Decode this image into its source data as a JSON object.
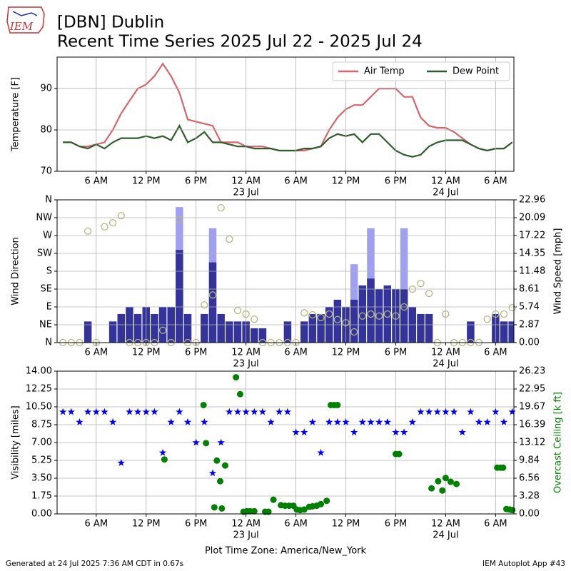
{
  "header": {
    "logo": "IEM",
    "title": "[DBN] Dublin",
    "subtitle": "Recent Time Series 2025 Jul 22 - 2025 Jul 24"
  },
  "footer": {
    "left": "Generated at 24 Jul 2025 7:36 AM CDT in 0.67s",
    "right": "IEM Autoplot App #43"
  },
  "chart_data": [
    {
      "type": "line",
      "ylabel": "Temperature [F]",
      "legend": "upper right",
      "grid": true,
      "xlim": [
        1.3,
        56.2
      ],
      "xticks": [
        {
          "value": 6,
          "label": "6 AM"
        },
        {
          "value": 12,
          "label": "12 PM"
        },
        {
          "value": 18,
          "label": "6 PM"
        },
        {
          "value": 24,
          "label": "12 AM",
          "sublabel": "23 Jul"
        },
        {
          "value": 30,
          "label": "6 AM"
        },
        {
          "value": 36,
          "label": "12 PM"
        },
        {
          "value": 42,
          "label": "6 PM"
        },
        {
          "value": 48,
          "label": "12 AM",
          "sublabel": "24 Jul"
        },
        {
          "value": 54,
          "label": "6 AM"
        }
      ],
      "ylim": [
        70,
        97.6
      ],
      "yticks": [
        70,
        80,
        90
      ],
      "x": [
        2,
        3,
        4,
        5,
        6,
        7,
        8,
        9,
        10,
        11,
        12,
        13,
        14,
        15,
        16,
        17,
        18,
        19,
        20,
        21,
        22,
        23,
        24,
        25,
        26,
        27,
        28,
        29,
        30,
        31,
        32,
        33,
        34,
        35,
        36,
        37,
        38,
        39,
        40,
        41,
        42,
        43,
        44,
        45,
        46,
        47,
        48,
        49,
        50,
        51,
        52,
        53,
        54,
        55,
        56
      ],
      "series": [
        {
          "name": "Air Temp",
          "color": "#d9646b",
          "values": [
            77,
            77,
            76,
            76,
            76.5,
            77,
            80,
            84,
            87,
            90,
            91,
            93,
            96,
            93,
            89,
            82.5,
            82,
            81.5,
            81,
            77,
            77,
            77,
            76,
            76,
            76,
            75.5,
            75,
            75,
            75,
            75,
            75.5,
            76,
            80,
            83,
            85,
            86,
            86,
            88,
            90,
            90,
            90,
            88,
            88,
            83,
            81,
            80.5,
            80.5,
            79.5,
            78,
            76.5,
            75.5,
            75,
            75.5,
            75.5,
            77
          ]
        },
        {
          "name": "Dew Point",
          "color": "#2e5e2e",
          "values": [
            77,
            77,
            76,
            75.5,
            76.5,
            75.5,
            77,
            78,
            78,
            78,
            78.5,
            78,
            78.5,
            77.5,
            81,
            77,
            78,
            79.5,
            77,
            77,
            76.5,
            76,
            76,
            75.5,
            75.5,
            75.5,
            75,
            75,
            75,
            75.5,
            75.5,
            76,
            78,
            79,
            78.5,
            79,
            77,
            79,
            79,
            77,
            75,
            74,
            73.5,
            74,
            76,
            77,
            77.5,
            77.5,
            77.5,
            76.5,
            75.5,
            75,
            75.5,
            75.5,
            77
          ]
        }
      ]
    },
    {
      "type": "bar",
      "ylabel": "Wind Direction",
      "y2label": "Wind Speed [mph]",
      "grid": true,
      "xlim": [
        1.3,
        56.2
      ],
      "xticks": [
        {
          "value": 6,
          "label": "6 AM"
        },
        {
          "value": 12,
          "label": "12 PM"
        },
        {
          "value": 18,
          "label": "6 PM"
        },
        {
          "value": 24,
          "label": "12 AM",
          "sublabel": "23 Jul"
        },
        {
          "value": 30,
          "label": "6 AM"
        },
        {
          "value": 36,
          "label": "12 PM"
        },
        {
          "value": 42,
          "label": "6 PM"
        },
        {
          "value": 48,
          "label": "12 AM",
          "sublabel": "24 Jul"
        },
        {
          "value": 54,
          "label": "6 AM"
        }
      ],
      "ylim": [
        0,
        360
      ],
      "yticks": [
        {
          "value": 0,
          "label": "N"
        },
        {
          "value": 45,
          "label": "NE"
        },
        {
          "value": 90,
          "label": "E"
        },
        {
          "value": 135,
          "label": "SE"
        },
        {
          "value": 180,
          "label": "S"
        },
        {
          "value": 225,
          "label": "SW"
        },
        {
          "value": 270,
          "label": "W"
        },
        {
          "value": 315,
          "label": "NW"
        },
        {
          "value": 360,
          "label": "N"
        }
      ],
      "y2lim": [
        0,
        22.96
      ],
      "y2ticks": [
        {
          "value": 0,
          "label": "0.00"
        },
        2.87,
        5.74,
        8.61,
        11.48,
        14.35,
        17.22,
        20.09,
        22.96
      ],
      "x": [
        2,
        3,
        4,
        5,
        6,
        7,
        8,
        9,
        10,
        11,
        12,
        13,
        14,
        15,
        16,
        17,
        18,
        19,
        20,
        21,
        22,
        23,
        24,
        25,
        26,
        27,
        28,
        29,
        30,
        31,
        32,
        33,
        34,
        35,
        36,
        37,
        38,
        39,
        40,
        41,
        42,
        43,
        44,
        45,
        46,
        47,
        48,
        49,
        50,
        51,
        52,
        53,
        54,
        55,
        56
      ],
      "series": [
        {
          "type": "bar",
          "axis": "y2",
          "color": "#a0a0f0",
          "values": [
            null,
            null,
            null,
            null,
            null,
            null,
            null,
            null,
            null,
            null,
            null,
            null,
            null,
            null,
            21.8,
            null,
            null,
            null,
            18.4,
            null,
            null,
            null,
            null,
            null,
            null,
            null,
            null,
            null,
            null,
            null,
            null,
            null,
            null,
            null,
            null,
            12.6,
            null,
            18.4,
            null,
            null,
            null,
            18.4,
            null,
            null,
            null,
            null,
            null,
            null,
            null,
            null,
            null,
            null,
            null,
            null,
            null
          ]
        },
        {
          "type": "bar",
          "axis": "y2",
          "color": "#333399",
          "values": [
            0,
            0,
            0,
            3.4,
            0,
            0,
            3.4,
            4.6,
            5.7,
            4.6,
            5.7,
            4.6,
            5.7,
            5.7,
            14.9,
            4.6,
            0,
            4.6,
            12.9,
            4.6,
            3.4,
            3.4,
            3.4,
            2.3,
            2.3,
            0,
            0,
            3.4,
            0,
            3.4,
            4.6,
            4.6,
            5.7,
            6.9,
            5.7,
            6.9,
            9.2,
            10.3,
            8.6,
            9.2,
            8.6,
            8.6,
            5.7,
            4.6,
            4.6,
            0,
            0,
            0,
            0,
            3.4,
            0,
            0,
            4.6,
            3.4,
            3.4
          ]
        },
        {
          "type": "scatter",
          "marker": "circle-open",
          "color": "#b5b580",
          "values": [
            0,
            0,
            0,
            281,
            0,
            292,
            302,
            320,
            0,
            0,
            0,
            0,
            31,
            0,
            310,
            0,
            0,
            95,
            120,
            340,
            261,
            81,
            72,
            59,
            0,
            0,
            0,
            0,
            0,
            75,
            70,
            63,
            72,
            58,
            50,
            27,
            67,
            72,
            67,
            72,
            67,
            90,
            135,
            149,
            124,
            0,
            72,
            0,
            0,
            0,
            0,
            59,
            72,
            72,
            88
          ]
        }
      ]
    },
    {
      "type": "scatter",
      "ylabel": "Visibility [miles]",
      "y2label": "Overcast Ceiling [k ft]",
      "y2label_color": "#008000",
      "xlabel": "Plot Time Zone: America/New_York",
      "grid": true,
      "xlim": [
        1.3,
        56.2
      ],
      "xticks": [
        {
          "value": 6,
          "label": "6 AM"
        },
        {
          "value": 12,
          "label": "12 PM"
        },
        {
          "value": 18,
          "label": "6 PM"
        },
        {
          "value": 24,
          "label": "12 AM",
          "sublabel": "23 Jul"
        },
        {
          "value": 30,
          "label": "6 AM"
        },
        {
          "value": 36,
          "label": "12 PM"
        },
        {
          "value": 42,
          "label": "6 PM"
        },
        {
          "value": 48,
          "label": "12 AM",
          "sublabel": "24 Jul"
        },
        {
          "value": 54,
          "label": "6 AM"
        }
      ],
      "ylim": [
        0,
        14
      ],
      "yticks": [
        {
          "value": 0,
          "label": "0.00"
        },
        1.75,
        {
          "value": 3.5,
          "label": "3.50"
        },
        5.25,
        {
          "value": 7,
          "label": "7.00"
        },
        8.75,
        {
          "value": 10.5,
          "label": "10.50"
        },
        12.25,
        {
          "value": 14,
          "label": "14.00"
        }
      ],
      "y2lim": [
        0,
        26.23
      ],
      "y2ticks": [
        {
          "value": 0,
          "label": "0.00"
        },
        3.28,
        6.56,
        9.84,
        13.12,
        16.39,
        19.67,
        22.95,
        26.23
      ],
      "x": [
        2,
        3,
        4,
        5,
        6,
        7,
        8,
        9,
        10,
        11,
        12,
        13,
        14,
        15,
        16,
        17,
        18,
        19,
        20,
        21,
        22,
        23,
        24,
        25,
        26,
        27,
        28,
        29,
        30,
        31,
        32,
        33,
        34,
        35,
        36,
        37,
        38,
        39,
        40,
        41,
        42,
        43,
        44,
        45,
        46,
        47,
        48,
        49,
        50,
        51,
        52,
        53,
        54,
        55,
        56
      ],
      "series": [
        {
          "type": "scatter",
          "marker": "star",
          "color": "#0000ff",
          "values": [
            10,
            10,
            9,
            10,
            10,
            10,
            9,
            5,
            10,
            10,
            10,
            10,
            6,
            9,
            10,
            9,
            7,
            9,
            4,
            7,
            10,
            10,
            10,
            10,
            10,
            9,
            10,
            10,
            8,
            8,
            9,
            6,
            9,
            9,
            9,
            8,
            9,
            9,
            9,
            9,
            8,
            8,
            9,
            10,
            10,
            10,
            10,
            10,
            8,
            10,
            9,
            9,
            10,
            9,
            10
          ]
        },
        {
          "type": "scatter",
          "marker": "circle",
          "axis": "y2",
          "color": "#008000",
          "x": [
            14.2,
            18.9,
            19.2,
            20.2,
            20.5,
            20.9,
            21.1,
            21.5,
            22.8,
            23.3,
            23.7,
            24.1,
            24.5,
            25.0,
            26.3,
            26.7,
            27.3,
            28.2,
            28.7,
            29.2,
            29.7,
            30.1,
            30.5,
            31.0,
            31.6,
            32.0,
            32.5,
            33.0,
            33.7,
            34.2,
            34.6,
            35.0,
            42.0,
            42.4,
            46.3,
            47.1,
            47.6,
            48.0,
            48.6,
            49.3,
            54.2,
            54.6,
            54.9,
            55.3,
            55.7,
            56.0
          ],
          "values": [
            10.0,
            20.0,
            13.0,
            1.2,
            9.8,
            6.0,
            1.0,
            8.9,
            25.1,
            22.0,
            0.4,
            0.5,
            0.5,
            0.5,
            0.4,
            0.4,
            2.6,
            1.6,
            1.5,
            1.5,
            1.5,
            0.8,
            0.7,
            0.8,
            1.3,
            1.4,
            1.5,
            1.8,
            2.4,
            20.0,
            20.0,
            20.0,
            11.0,
            11.0,
            4.7,
            6.0,
            4.3,
            6.6,
            5.9,
            5.5,
            8.5,
            8.5,
            8.5,
            0.9,
            0.8,
            0.7
          ]
        }
      ]
    }
  ]
}
